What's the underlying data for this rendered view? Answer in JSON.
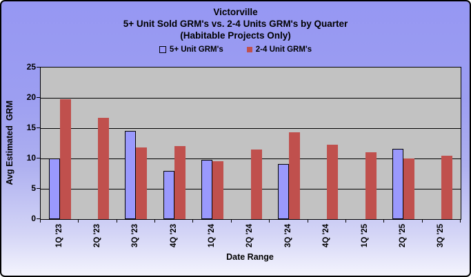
{
  "title": {
    "line1": "Victorville",
    "line2": "5+ Unit Sold GRM's vs. 2-4 Units GRM's by Quarter",
    "line3": "(Habitable Projects Only)"
  },
  "colors": {
    "series_5plus": "#9a99fd",
    "series_2to4": "#c0504d",
    "plot_background": "#c2c2c2",
    "chart_background_top": "#9697f3",
    "chart_background_bottom": "#f4f4fd"
  },
  "chart_data": {
    "type": "bar",
    "title": "Victorville",
    "subtitle": "5+ Unit Sold GRM's vs. 2-4 Units GRM's by Quarter",
    "subtitle2": "(Habitable Projects Only)",
    "categories": [
      "1Q '23",
      "2Q '23",
      "3Q '23",
      "4Q '23",
      "1Q '24",
      "2Q '24",
      "3Q '24",
      "4Q '24",
      "1Q '25",
      "2Q '25",
      "3Q '25"
    ],
    "series": [
      {
        "name": "5+ Unit GRM's",
        "color": "#9a99fd",
        "values": [
          10.0,
          null,
          14.5,
          7.9,
          9.8,
          null,
          9.1,
          null,
          null,
          11.6,
          null
        ]
      },
      {
        "name": "2-4 Unit GRM's",
        "color": "#c0504d",
        "values": [
          19.8,
          16.7,
          11.8,
          12.0,
          9.5,
          11.5,
          14.3,
          12.3,
          11.0,
          10.0,
          10.5
        ]
      }
    ],
    "xlabel": "Date Range",
    "ylabel": "Avg Estimated  GRM",
    "ylim": [
      0,
      25
    ],
    "yticks": [
      0,
      5,
      10,
      15,
      20,
      25
    ],
    "grid": true,
    "legend_position": "top"
  }
}
